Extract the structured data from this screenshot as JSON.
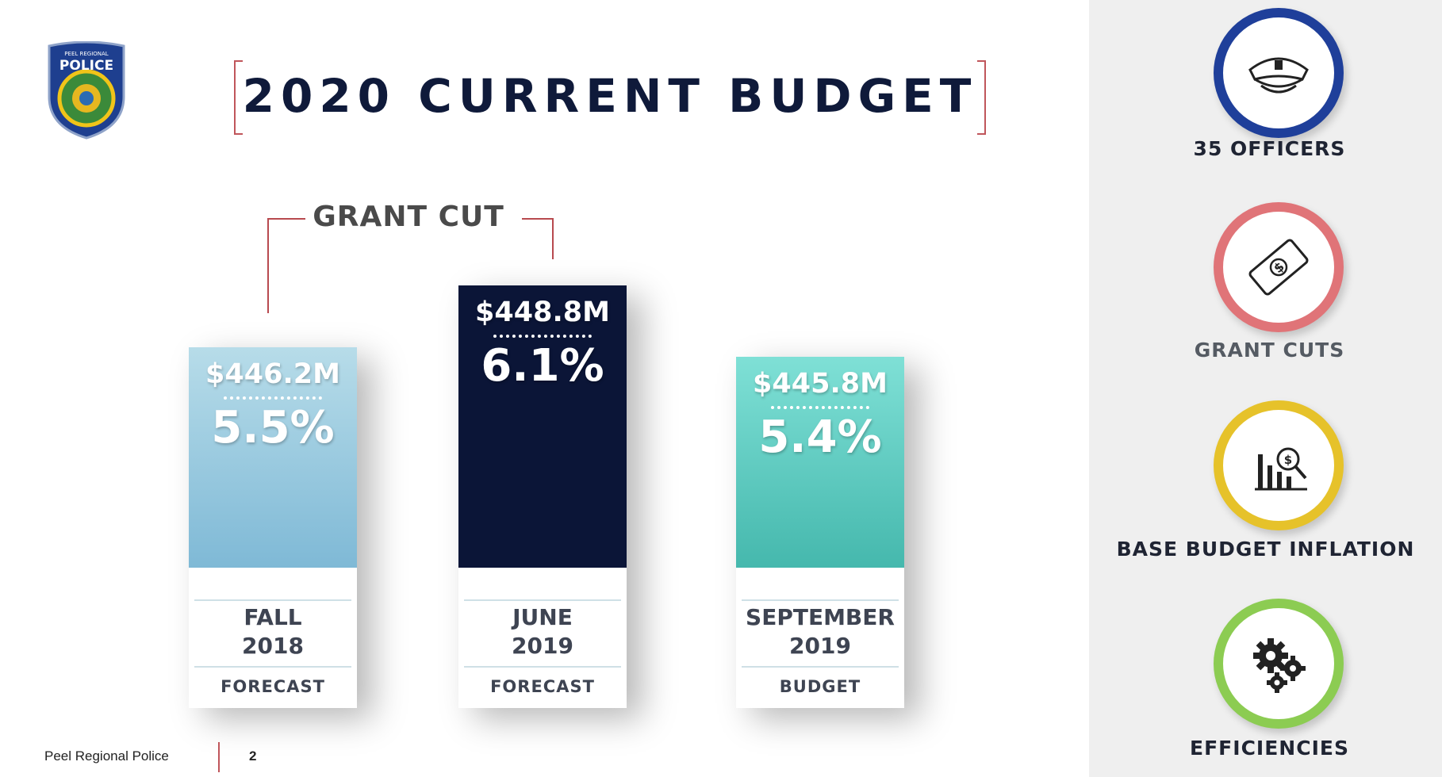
{
  "logo": {
    "top_text": "PEEL REGIONAL",
    "main_text": "POLICE"
  },
  "title": "2020 CURRENT BUDGET",
  "grant_cut_label": "GRANT CUT",
  "chart_data": {
    "type": "bar",
    "title": "2020 CURRENT BUDGET",
    "categories": [
      "FALL 2018 FORECAST",
      "JUNE 2019 FORECAST",
      "SEPTEMBER 2019 BUDGET"
    ],
    "series": [
      {
        "values": [
          446.2,
          448.8,
          445.8
        ]
      }
    ],
    "percent_values": [
      5.5,
      6.1,
      5.4
    ],
    "bars": [
      {
        "amount": "$446.2M",
        "percent": "5.5%",
        "period_line1": "FALL",
        "period_line2": "2018",
        "kind": "FORECAST",
        "value": 446.2,
        "color": "#9fcfe3"
      },
      {
        "amount": "$448.8M",
        "percent": "6.1%",
        "period_line1": "JUNE",
        "period_line2": "2019",
        "kind": "FORECAST",
        "value": 448.8,
        "color": "#0b1537"
      },
      {
        "amount": "$445.8M",
        "percent": "5.4%",
        "period_line1": "SEPTEMBER",
        "period_line2": "2019",
        "kind": "BUDGET",
        "value": 445.8,
        "color": "#6fd8cf"
      }
    ],
    "annotations": [
      "GRANT CUT"
    ],
    "grid": false,
    "legend": "none"
  },
  "reasons": [
    {
      "label": "35 OFFICERS",
      "icon": "police-cap-icon",
      "ring_color": "#1f3f9a",
      "label_color": "#1f2433"
    },
    {
      "label": "GRANT CUTS",
      "icon": "money-bill-icon",
      "ring_color": "#e07478",
      "label_color": "#555b63"
    },
    {
      "label": "BASE BUDGET INFLATION",
      "icon": "budget-chart-icon",
      "ring_color": "#e6c22a",
      "label_color": "#1f2433"
    },
    {
      "label": "EFFICIENCIES",
      "icon": "gears-icon",
      "ring_color": "#8ccc52",
      "label_color": "#1f2433"
    }
  ],
  "footer": {
    "org": "Peel Regional Police",
    "page": "2"
  }
}
